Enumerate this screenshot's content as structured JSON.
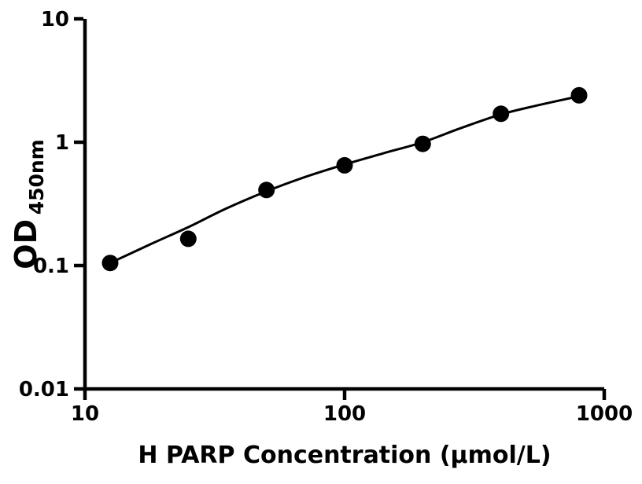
{
  "chart_data": {
    "type": "scatter",
    "title": "",
    "xlabel": "H PARP Concentration (μmol/L)",
    "ylabel_main": "OD",
    "ylabel_sub": "450nm",
    "x_scale": "log",
    "y_scale": "log",
    "xlim": [
      10,
      1000
    ],
    "ylim": [
      0.01,
      10
    ],
    "x_ticks": [
      10,
      100,
      1000
    ],
    "x_tick_labels": [
      "10",
      "100",
      "1000"
    ],
    "y_ticks": [
      10,
      1,
      0.1,
      0.01
    ],
    "y_tick_labels": [
      "10",
      "1",
      "0.1",
      "0.01"
    ],
    "grid": false,
    "legend": "none",
    "points": {
      "x": [
        12.5,
        25,
        50,
        100,
        200,
        400,
        800
      ],
      "y": [
        0.105,
        0.165,
        0.41,
        0.65,
        0.97,
        1.7,
        2.4
      ]
    },
    "fit_curve": {
      "x": [
        12.5,
        18,
        25,
        35,
        50,
        70,
        100,
        140,
        200,
        280,
        400,
        560,
        800
      ],
      "y": [
        0.105,
        0.15,
        0.205,
        0.29,
        0.4,
        0.52,
        0.66,
        0.81,
        1.0,
        1.3,
        1.68,
        2.0,
        2.36
      ]
    },
    "marker_color": "#000000",
    "line_color": "#000000",
    "axis_color": "#000000",
    "background": "#ffffff"
  }
}
